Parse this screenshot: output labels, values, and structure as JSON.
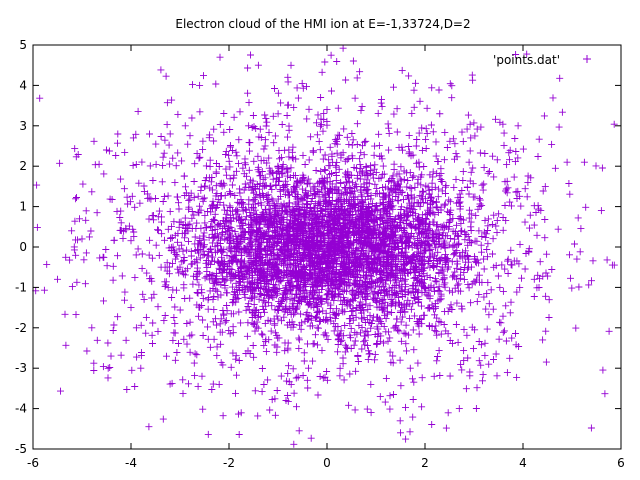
{
  "chart_data": {
    "type": "scatter",
    "title": "Electron cloud of the HMI ion at E=-1,33724,D=2",
    "xlabel": "",
    "ylabel": "",
    "xlim": [
      -6,
      6
    ],
    "ylim": [
      -5,
      5
    ],
    "xticks": [
      -6,
      -4,
      -2,
      0,
      2,
      4,
      6
    ],
    "yticks": [
      -5,
      -4,
      -3,
      -2,
      -1,
      0,
      1,
      2,
      3,
      4,
      5
    ],
    "xtick_labels": [
      "-6",
      "-4",
      "-2",
      "0",
      "2",
      "4",
      "6"
    ],
    "ytick_labels": [
      "-5",
      "-4",
      "-3",
      "-2",
      "-1",
      "0",
      "1",
      "2",
      "3",
      "4",
      "5"
    ],
    "grid": false,
    "legend": {
      "placement": "top-right",
      "entries": [
        "'points.dat'"
      ]
    },
    "marker": "plus",
    "color": "#9400d3",
    "series": [
      {
        "name": "'points.dat'",
        "density_centers": [
          [
            -0.9,
            0.0
          ],
          [
            0.9,
            0.0
          ]
        ],
        "approx_extent": {
          "x": [
            -6,
            6
          ],
          "y": [
            -5,
            5
          ]
        },
        "points": [
          [
            -0.9,
            0.0
          ],
          [
            0.9,
            0.0
          ],
          [
            -1.2,
            0.3
          ],
          [
            1.1,
            -0.3
          ],
          [
            -0.5,
            0.4
          ],
          [
            0.5,
            -0.4
          ],
          [
            -1.5,
            -0.2
          ],
          [
            1.4,
            0.3
          ],
          [
            -0.7,
            -0.6
          ],
          [
            0.7,
            0.6
          ],
          [
            -2.0,
            0.5
          ],
          [
            2.1,
            -0.5
          ],
          [
            -1.8,
            -1.0
          ],
          [
            1.9,
            1.0
          ],
          [
            -0.3,
            1.2
          ],
          [
            0.4,
            -1.1
          ],
          [
            -2.5,
            1.5
          ],
          [
            2.4,
            -1.6
          ],
          [
            -3.0,
            -0.5
          ],
          [
            3.1,
            0.4
          ],
          [
            -1.0,
            2.0
          ],
          [
            1.2,
            -2.1
          ],
          [
            -0.2,
            -2.0
          ],
          [
            0.1,
            2.3
          ],
          [
            -3.5,
            1.2
          ],
          [
            3.6,
            -1.1
          ],
          [
            -2.8,
            -2.2
          ],
          [
            2.9,
            2.1
          ],
          [
            -1.6,
            3.0
          ],
          [
            1.7,
            -3.0
          ],
          [
            0.0,
            3.4
          ],
          [
            -0.4,
            -3.3
          ],
          [
            -4.2,
            0.6
          ],
          [
            4.3,
            -0.7
          ],
          [
            -4.0,
            -1.5
          ],
          [
            4.1,
            1.6
          ],
          [
            -3.2,
            2.8
          ],
          [
            3.3,
            -2.9
          ],
          [
            -2.2,
            -3.4
          ],
          [
            2.3,
            3.3
          ],
          [
            -0.8,
            4.2
          ],
          [
            0.9,
            -4.1
          ],
          [
            -5.0,
            0.2
          ],
          [
            5.1,
            -0.3
          ],
          [
            -4.8,
            -2.0
          ],
          [
            4.9,
            2.1
          ],
          [
            -4.5,
            2.4
          ],
          [
            4.4,
            -2.3
          ],
          [
            -1.4,
            4.5
          ],
          [
            1.5,
            -4.6
          ],
          [
            -5.5,
            -0.8
          ],
          [
            5.6,
            0.9
          ],
          [
            -2.6,
            4.0
          ],
          [
            2.7,
            -4.0
          ],
          [
            -3.8,
            -3.0
          ],
          [
            3.9,
            3.0
          ],
          [
            -0.1,
            0.9
          ],
          [
            0.2,
            -0.8
          ],
          [
            -1.9,
            0.1
          ],
          [
            2.0,
            -0.1
          ],
          [
            -0.6,
            -1.4
          ],
          [
            0.6,
            1.5
          ],
          [
            -2.3,
            -0.9
          ],
          [
            2.2,
            0.8
          ]
        ]
      }
    ]
  }
}
